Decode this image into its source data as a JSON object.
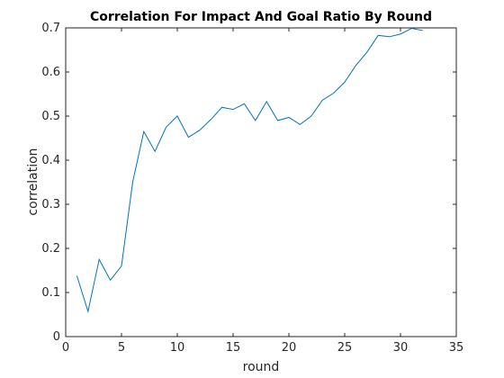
{
  "chart_data": {
    "type": "line",
    "title": "Correlation For Impact And Goal Ratio By Round",
    "xlabel": "round",
    "ylabel": "correlation",
    "xlim": [
      0,
      35
    ],
    "ylim": [
      0,
      0.7
    ],
    "xticks": [
      "0",
      "5",
      "10",
      "15",
      "20",
      "25",
      "30",
      "35"
    ],
    "yticks": [
      "0",
      "0.1",
      "0.2",
      "0.3",
      "0.4",
      "0.5",
      "0.6",
      "0.7"
    ],
    "grid": false,
    "legend": "none",
    "line_color": "#0072bd",
    "x": [
      1,
      2,
      3,
      4,
      5,
      6,
      7,
      8,
      9,
      10,
      11,
      12,
      13,
      14,
      15,
      16,
      17,
      18,
      19,
      20,
      21,
      22,
      23,
      24,
      25,
      26,
      27,
      28,
      29,
      30,
      31,
      32
    ],
    "y": [
      0.138,
      0.057,
      0.175,
      0.128,
      0.16,
      0.35,
      0.465,
      0.42,
      0.475,
      0.5,
      0.452,
      0.468,
      0.492,
      0.52,
      0.515,
      0.528,
      0.49,
      0.533,
      0.49,
      0.497,
      0.481,
      0.5,
      0.536,
      0.552,
      0.577,
      0.615,
      0.645,
      0.683,
      0.68,
      0.686,
      0.699,
      0.694
    ]
  }
}
